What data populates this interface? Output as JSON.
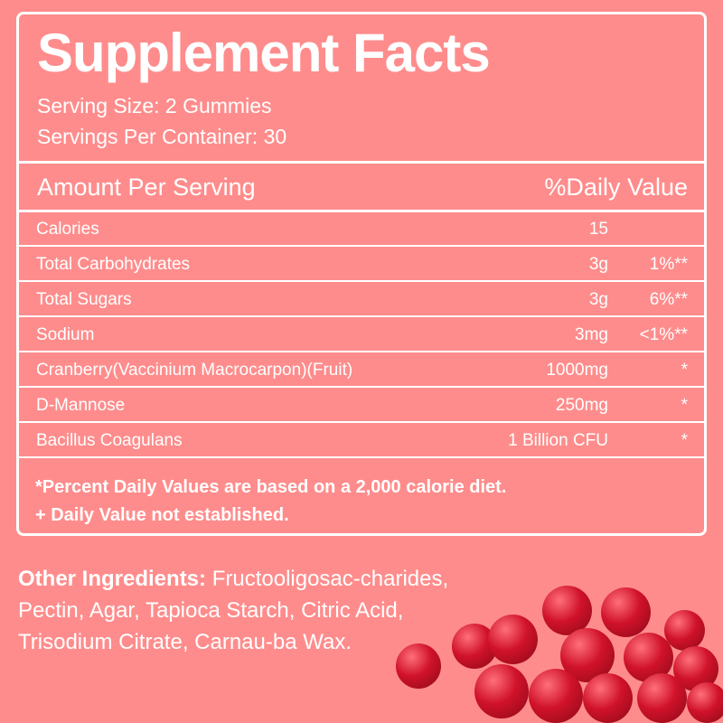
{
  "title": "Supplement Facts",
  "serving_size": "Serving Size: 2 Gummies",
  "servings_per_container": "Servings Per Container: 30",
  "header": {
    "amount": "Amount Per Serving",
    "dv": "%Daily Value"
  },
  "rows": [
    {
      "name": "Calories",
      "amount": "15",
      "dv": ""
    },
    {
      "name": "Total Carbohydrates",
      "amount": "3g",
      "dv": "1%**"
    },
    {
      "name": "Total Sugars",
      "amount": "3g",
      "dv": "6%**"
    },
    {
      "name": "Sodium",
      "amount": "3mg",
      "dv": "<1%**"
    },
    {
      "name": "Cranberry(Vaccinium Macrocarpon)(Fruit)",
      "amount": "1000mg",
      "dv": "*"
    },
    {
      "name": "D-Mannose",
      "amount": "250mg",
      "dv": "*"
    },
    {
      "name": "Bacillus Coagulans",
      "amount": "1 Billion CFU",
      "dv": "*"
    }
  ],
  "footnotes": [
    "*Percent Daily Values are based on a 2,000 calorie diet.",
    "+ Daily Value not established."
  ],
  "other_ingredients": {
    "label": "Other Ingredients:",
    "text": " Fructooligosac-charides, Pectin, Agar, Tapioca Starch, Citric Acid, Trisodium Citrate, Carnau-ba Wax."
  },
  "colors": {
    "background": "#ff8c8c",
    "text": "#ffffff"
  }
}
